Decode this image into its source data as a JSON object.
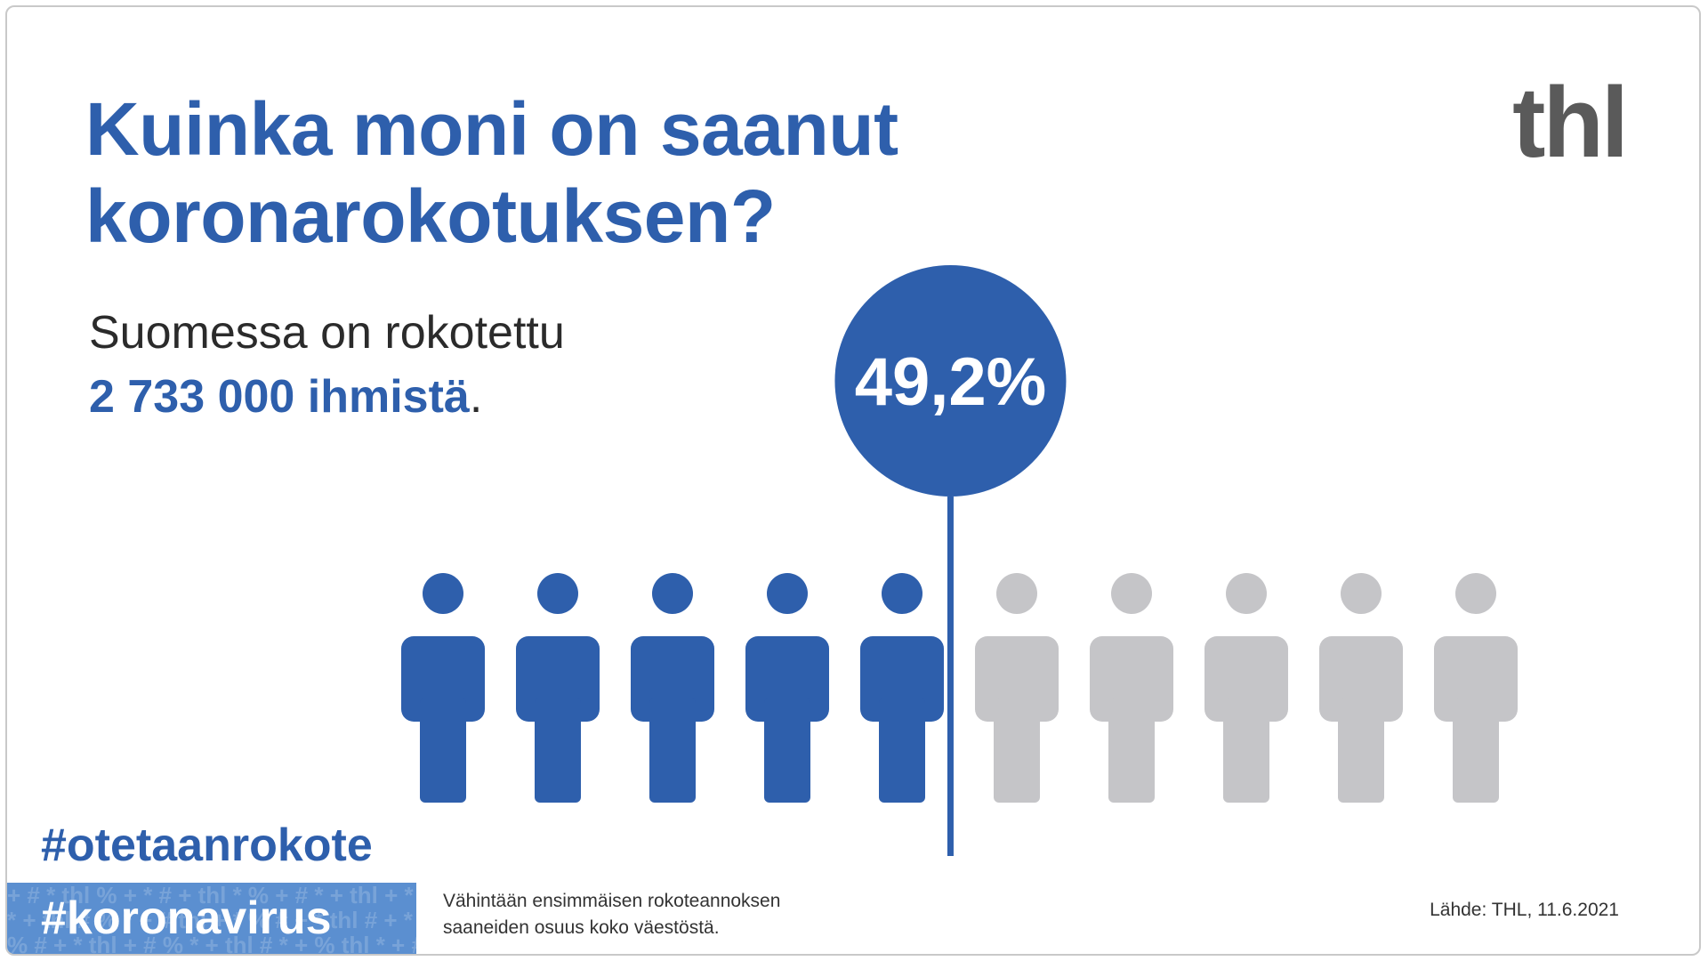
{
  "title": {
    "line1": "Kuinka moni on saanut",
    "line2": "koronarokotuksen?"
  },
  "logo": "thl",
  "subtitle": {
    "line1": "Suomessa on rokotettu",
    "count": "2 733 000 ihmistä",
    "suffix": "."
  },
  "chart_data": {
    "type": "pictogram",
    "total_icons": 10,
    "percent": 49.2,
    "percent_label": "49,2%",
    "colors": {
      "filled": "#2e5fac",
      "empty": "#c5c5c8"
    }
  },
  "hashtags": {
    "primary": "#otetaanrokote",
    "secondary": "#koronavirus"
  },
  "footnote": {
    "line1": "Vähintään ensimmäisen rokoteannoksen",
    "line2": "saaneiden osuus koko väestöstä."
  },
  "source": "Lähde: THL, 11.6.2021"
}
